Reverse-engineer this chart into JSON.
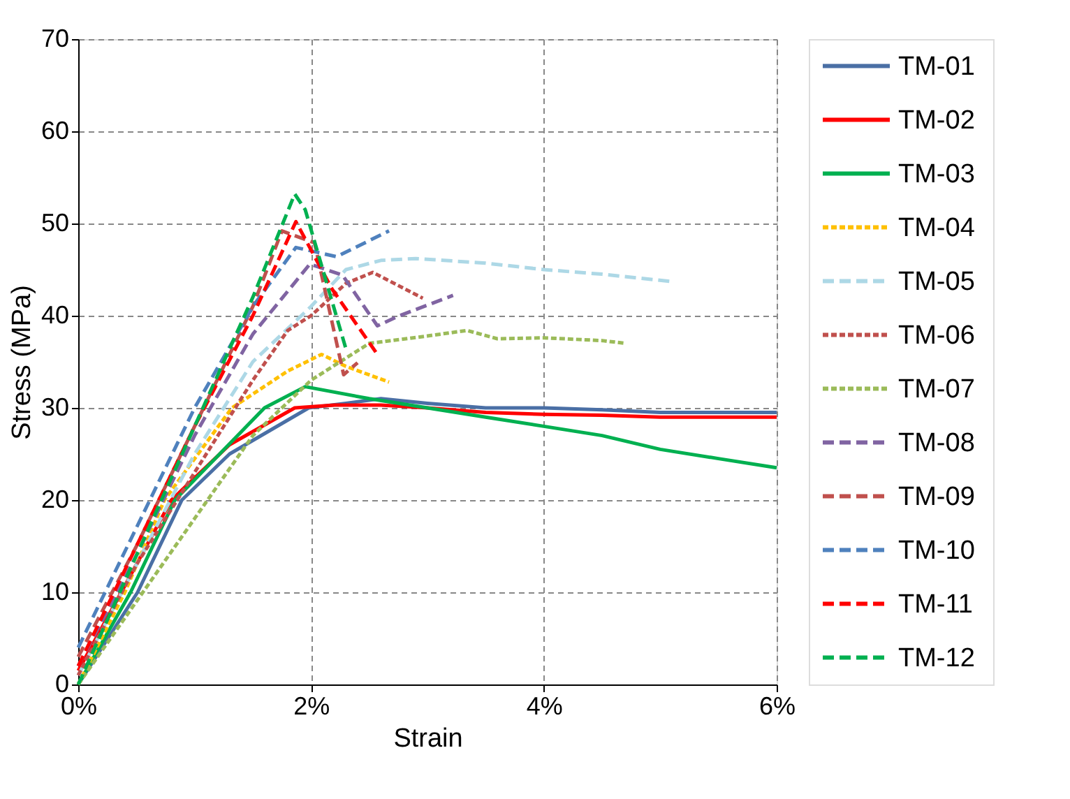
{
  "chart_data": {
    "type": "line",
    "xlabel": "Strain",
    "ylabel": "Stress  (MPa)",
    "xlim": [
      0,
      6
    ],
    "xticks": [
      {
        "value": 0,
        "label": "0%"
      },
      {
        "value": 2,
        "label": "2%"
      },
      {
        "value": 4,
        "label": "4%"
      },
      {
        "value": 6,
        "label": "6%"
      }
    ],
    "ylim": [
      0,
      70
    ],
    "yticks": [
      0,
      10,
      20,
      30,
      40,
      50,
      60,
      70
    ],
    "grid": true,
    "legend": "right",
    "marker": "none",
    "series": [
      {
        "name": "TM-01",
        "color": "#4a6fa5",
        "line_style": "solid",
        "x": [
          0,
          0.51,
          0.89,
          1.3,
          1.98,
          2.3,
          2.6,
          3.0,
          3.5,
          4.0,
          4.5,
          5.0,
          5.5,
          6.0
        ],
        "values": [
          0,
          10,
          20,
          25,
          30,
          30.5,
          31,
          30.5,
          30,
          30,
          29.8,
          29.5,
          29.5,
          29.5
        ]
      },
      {
        "name": "TM-02",
        "color": "#ff0000",
        "line_style": "solid",
        "x": [
          0,
          0.37,
          0.8,
          1.3,
          1.86,
          2.2,
          2.6,
          3.0,
          3.5,
          4.0,
          4.5,
          5.0,
          5.5,
          6.0
        ],
        "values": [
          1.5,
          10,
          20,
          26,
          30,
          30.3,
          30.3,
          30,
          29.5,
          29.3,
          29.2,
          29,
          29,
          29
        ]
      },
      {
        "name": "TM-03",
        "color": "#00b050",
        "line_style": "solid",
        "x": [
          0,
          0.45,
          0.83,
          1.6,
          1.95,
          2.5,
          3.0,
          3.5,
          4.0,
          4.5,
          5.0,
          5.5,
          6.0
        ],
        "values": [
          0,
          10,
          20,
          30,
          32.3,
          31,
          30,
          29,
          28,
          27,
          25.5,
          24.5,
          23.5
        ]
      },
      {
        "name": "TM-04",
        "color": "#ffc000",
        "line_style": "dotted",
        "x": [
          0,
          0.4,
          0.74,
          1.32,
          1.8,
          2.09,
          2.3,
          2.67
        ],
        "values": [
          0,
          10,
          20,
          30,
          34,
          35.8,
          34.5,
          32.8
        ]
      },
      {
        "name": "TM-05",
        "color": "#add8e6",
        "line_style": "dashed",
        "x": [
          0,
          0.5,
          1.0,
          1.5,
          2.0,
          2.3,
          2.6,
          2.9,
          3.5,
          4.0,
          4.5,
          5.1
        ],
        "values": [
          1,
          13,
          25,
          35,
          41,
          45,
          46,
          46.2,
          45.7,
          45,
          44.5,
          43.7
        ]
      },
      {
        "name": "TM-06",
        "color": "#c0504d",
        "line_style": "dotted",
        "x": [
          0,
          0.5,
          1.0,
          1.5,
          1.8,
          2.0,
          2.3,
          2.53,
          2.96
        ],
        "values": [
          1,
          13,
          23,
          33,
          38.4,
          40,
          43.5,
          44.7,
          41.9
        ]
      },
      {
        "name": "TM-07",
        "color": "#9bbb59",
        "line_style": "dotted",
        "x": [
          0,
          0.5,
          1.0,
          1.5,
          2.0,
          2.5,
          3.0,
          3.34,
          3.6,
          4.0,
          4.5,
          4.7
        ],
        "values": [
          0,
          9,
          18,
          27,
          33,
          37,
          37.8,
          38.4,
          37.5,
          37.6,
          37.3,
          37
        ]
      },
      {
        "name": "TM-08",
        "color": "#8064a2",
        "line_style": "dashed",
        "x": [
          0,
          0.5,
          1.0,
          1.5,
          1.99,
          2.27,
          2.57,
          2.76,
          3.22
        ],
        "values": [
          2,
          14,
          27,
          38,
          45.6,
          44.4,
          38.9,
          40,
          42.2
        ]
      },
      {
        "name": "TM-09",
        "color": "#c0504d",
        "line_style": "dashed",
        "x": [
          0,
          0.5,
          1.0,
          1.5,
          1.75,
          2.03,
          2.28,
          2.4
        ],
        "values": [
          3,
          15,
          28,
          41,
          49.2,
          47.9,
          33.6,
          34.9
        ]
      },
      {
        "name": "TM-10",
        "color": "#4f81bd",
        "line_style": "dashed",
        "x": [
          0,
          0.5,
          1.0,
          1.5,
          1.87,
          2.22,
          2.67
        ],
        "values": [
          4,
          17,
          30,
          41,
          47.4,
          46.4,
          49.2
        ]
      },
      {
        "name": "TM-11",
        "color": "#ff0000",
        "line_style": "dashed",
        "x": [
          0,
          0.5,
          1.0,
          1.5,
          1.87,
          2.18,
          2.57
        ],
        "values": [
          2,
          15,
          28,
          40,
          50.2,
          42.9,
          35.8
        ]
      },
      {
        "name": "TM-12",
        "color": "#00b050",
        "line_style": "dashed",
        "x": [
          0,
          0.5,
          1.0,
          1.5,
          1.86,
          1.95,
          2.3
        ],
        "values": [
          0,
          14,
          28,
          42,
          53.2,
          51.5,
          36.4
        ]
      }
    ]
  }
}
